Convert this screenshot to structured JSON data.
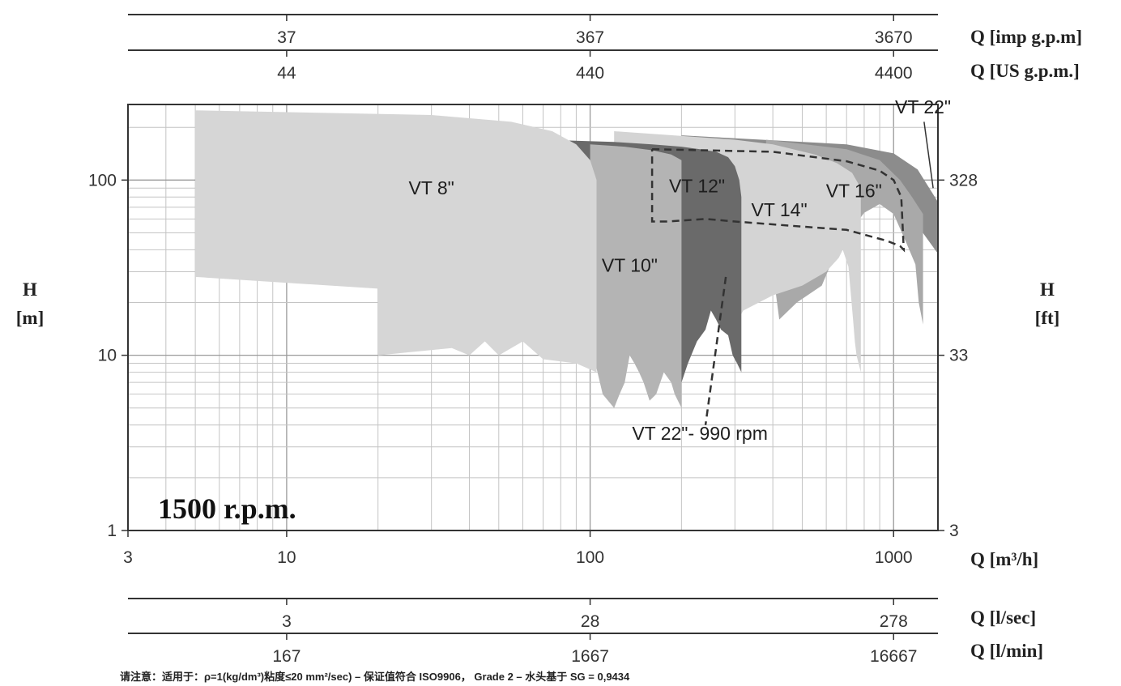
{
  "chart_data": {
    "type": "area",
    "speed_label": "1500 r.p.m.",
    "x_axis": {
      "label": "Q [m³/h]",
      "scale": "log",
      "range": [
        3,
        1400
      ],
      "ticks": [
        3,
        10,
        100,
        1000
      ]
    },
    "y_axis_left": {
      "label_top": "H",
      "label_bottom": "[m]",
      "scale": "log",
      "range": [
        1,
        270
      ],
      "ticks": [
        1,
        10,
        100
      ]
    },
    "y_axis_right": {
      "label_top": "H",
      "label_bottom": "[ft]",
      "ticks": [
        {
          "h_m": 100,
          "label": "328"
        },
        {
          "h_m": 10,
          "label": "33"
        },
        {
          "h_m": 1,
          "label": "3"
        }
      ]
    },
    "secondary_axes": [
      {
        "label": "Q [imp g.p.m]",
        "position": "top",
        "ticks": [
          {
            "q": 10,
            "label": "37"
          },
          {
            "q": 100,
            "label": "367"
          },
          {
            "q": 1000,
            "label": "3670"
          }
        ]
      },
      {
        "label": "Q [US g.p.m.]",
        "position": "top",
        "ticks": [
          {
            "q": 10,
            "label": "44"
          },
          {
            "q": 100,
            "label": "440"
          },
          {
            "q": 1000,
            "label": "4400"
          }
        ]
      },
      {
        "label": "Q [l/sec]",
        "position": "bottom",
        "ticks": [
          {
            "q": 10,
            "label": "3"
          },
          {
            "q": 100,
            "label": "28"
          },
          {
            "q": 1000,
            "label": "278"
          }
        ]
      },
      {
        "label": "Q [l/min]",
        "position": "bottom",
        "ticks": [
          {
            "q": 10,
            "label": "167"
          },
          {
            "q": 100,
            "label": "1667"
          },
          {
            "q": 1000,
            "label": "16667"
          }
        ]
      }
    ],
    "grid": true,
    "series": [
      {
        "name": "VT 22\"",
        "color": "#8c8c8c",
        "label_at": [
          1250,
          240
        ],
        "polygon": [
          [
            200,
            180
          ],
          [
            700,
            160
          ],
          [
            1000,
            142
          ],
          [
            1200,
            115
          ],
          [
            1400,
            75
          ],
          [
            1400,
            38
          ],
          [
            1200,
            55
          ],
          [
            1050,
            75
          ],
          [
            900,
            100
          ],
          [
            600,
            140
          ],
          [
            200,
            170
          ]
        ]
      },
      {
        "name": "VT 16\"",
        "color": "#a9a9a9",
        "label_at": [
          740,
          80
        ],
        "polygon": [
          [
            380,
            170
          ],
          [
            700,
            150
          ],
          [
            900,
            130
          ],
          [
            1050,
            100
          ],
          [
            1150,
            80
          ],
          [
            1250,
            64
          ],
          [
            1250,
            15
          ],
          [
            1210,
            20
          ],
          [
            1180,
            33
          ],
          [
            1100,
            44
          ],
          [
            1000,
            64
          ],
          [
            900,
            73
          ],
          [
            800,
            65
          ],
          [
            650,
            40
          ],
          [
            580,
            25
          ],
          [
            480,
            20
          ],
          [
            420,
            16
          ],
          [
            380,
            60
          ]
        ]
      },
      {
        "name": "VT 14\"",
        "color": "#d4d4d4",
        "label_at": [
          420,
          62
        ],
        "polygon": [
          [
            120,
            190
          ],
          [
            300,
            170
          ],
          [
            400,
            160
          ],
          [
            550,
            140
          ],
          [
            650,
            125
          ],
          [
            730,
            110
          ],
          [
            780,
            90
          ],
          [
            780,
            8
          ],
          [
            755,
            10
          ],
          [
            745,
            12
          ],
          [
            735,
            16
          ],
          [
            710,
            32
          ],
          [
            680,
            40
          ],
          [
            660,
            36
          ],
          [
            600,
            30
          ],
          [
            500,
            25
          ],
          [
            400,
            22
          ],
          [
            320,
            18
          ],
          [
            300,
            15
          ],
          [
            290,
            18
          ],
          [
            280,
            20
          ],
          [
            260,
            23
          ],
          [
            250,
            25
          ],
          [
            230,
            23
          ],
          [
            220,
            21
          ],
          [
            200,
            18
          ],
          [
            180,
            16
          ],
          [
            160,
            14
          ],
          [
            120,
            14
          ]
        ]
      },
      {
        "name": "VT 12\"",
        "color": "#6a6a6a",
        "label_at": [
          225,
          85
        ],
        "polygon": [
          [
            70,
            170
          ],
          [
            120,
            165
          ],
          [
            160,
            160
          ],
          [
            200,
            155
          ],
          [
            230,
            150
          ],
          [
            260,
            145
          ],
          [
            285,
            135
          ],
          [
            300,
            120
          ],
          [
            310,
            100
          ],
          [
            315,
            80
          ],
          [
            315,
            8
          ],
          [
            305,
            9
          ],
          [
            295,
            10
          ],
          [
            285,
            13
          ],
          [
            270,
            14
          ],
          [
            260,
            16
          ],
          [
            250,
            18
          ],
          [
            240,
            14
          ],
          [
            225,
            12
          ],
          [
            210,
            9
          ],
          [
            200,
            7
          ],
          [
            190,
            10
          ],
          [
            170,
            14
          ],
          [
            150,
            18
          ],
          [
            120,
            20
          ],
          [
            100,
            22
          ],
          [
            70,
            30
          ]
        ]
      },
      {
        "name": "VT 10\"",
        "color": "#b4b4b4",
        "label_at": [
          135,
          30
        ],
        "polygon": [
          [
            100,
            160
          ],
          [
            130,
            155
          ],
          [
            160,
            148
          ],
          [
            185,
            140
          ],
          [
            200,
            130
          ],
          [
            200,
            5
          ],
          [
            190,
            6
          ],
          [
            185,
            7
          ],
          [
            175,
            8
          ],
          [
            165,
            6
          ],
          [
            157,
            5.5
          ],
          [
            150,
            7
          ],
          [
            145,
            8
          ],
          [
            140,
            9
          ],
          [
            135,
            10
          ],
          [
            130,
            7
          ],
          [
            125,
            6
          ],
          [
            120,
            5
          ],
          [
            110,
            6
          ],
          [
            100,
            12
          ]
        ]
      },
      {
        "name": "VT 8\"",
        "color": "#d6d6d6",
        "label_at": [
          30,
          83
        ],
        "polygon": [
          [
            5,
            250
          ],
          [
            30,
            235
          ],
          [
            55,
            215
          ],
          [
            75,
            190
          ],
          [
            90,
            160
          ],
          [
            100,
            130
          ],
          [
            105,
            100
          ],
          [
            105,
            8
          ],
          [
            90,
            9
          ],
          [
            70,
            9.5
          ],
          [
            60,
            12
          ],
          [
            50,
            10
          ],
          [
            45,
            12
          ],
          [
            40,
            10
          ],
          [
            35,
            11
          ],
          [
            20,
            10
          ],
          [
            20,
            24
          ],
          [
            5,
            28
          ]
        ]
      },
      {
        "name": "VT 22\"- 990 rpm",
        "dashed": true,
        "color": "#333333",
        "label_at": [
          230,
          3.3
        ],
        "leader": [
          [
            280,
            28
          ],
          [
            240,
            4
          ]
        ],
        "path": [
          [
            160,
            150
          ],
          [
            400,
            145
          ],
          [
            700,
            128
          ],
          [
            900,
            113
          ],
          [
            1000,
            100
          ],
          [
            1060,
            80
          ],
          [
            1080,
            40
          ],
          [
            1050,
            42
          ],
          [
            950,
            45
          ],
          [
            700,
            52
          ],
          [
            450,
            55
          ],
          [
            300,
            58
          ],
          [
            240,
            60
          ],
          [
            180,
            58
          ],
          [
            160,
            58
          ],
          [
            160,
            150
          ]
        ]
      }
    ]
  },
  "footnote": "请注意：适用于：ρ=1(kg/dm³)粘度≤20 mm²/sec) – 保证值符合 ISO9906， Grade 2 – 水头基于 SG = 0,9434"
}
